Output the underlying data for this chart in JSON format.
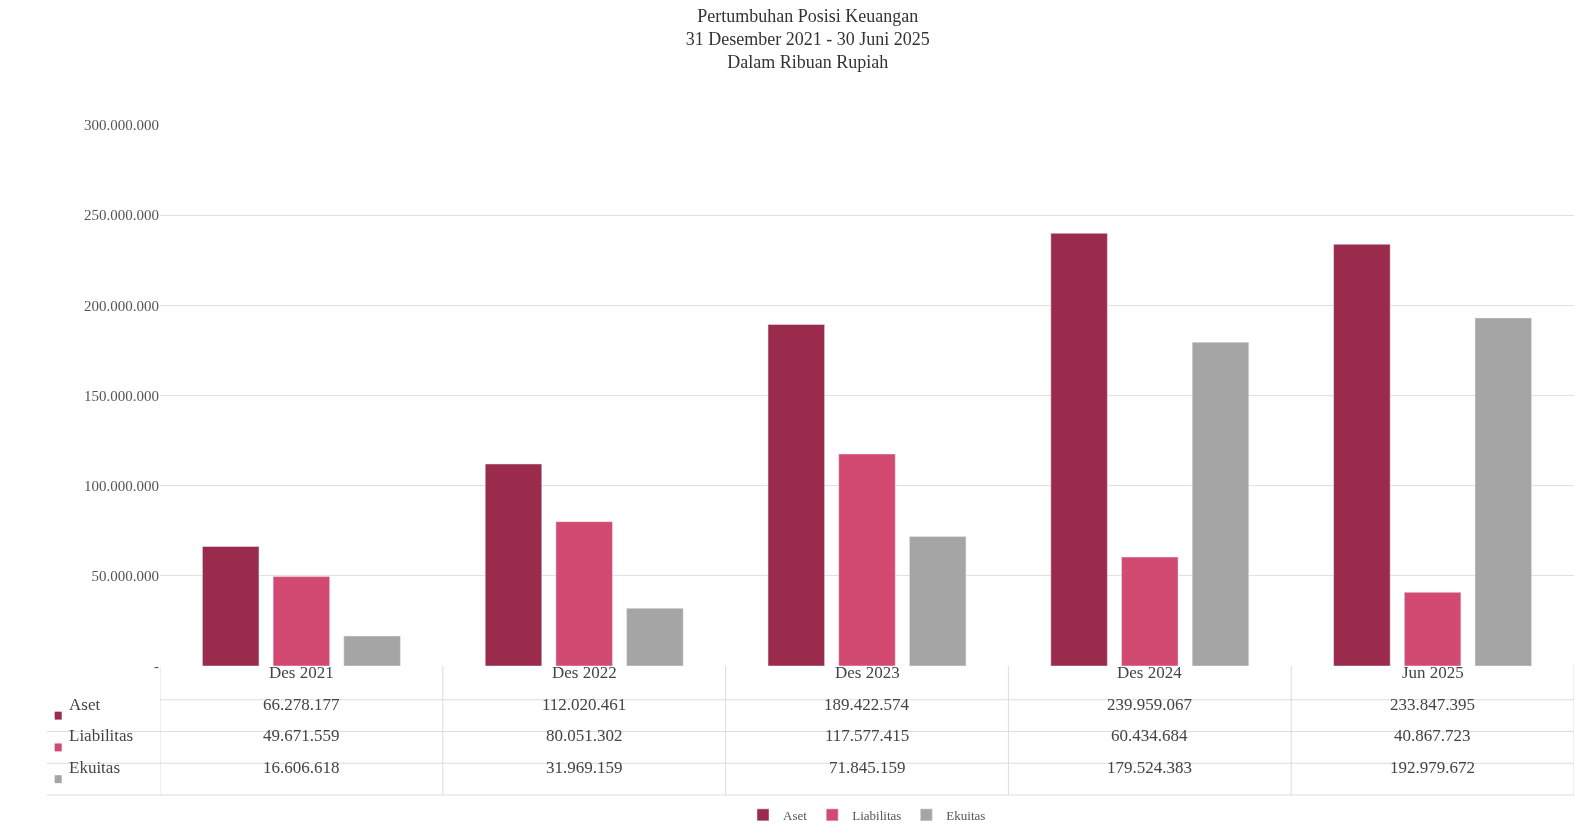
{
  "chart_data": {
    "type": "bar",
    "title": "Pertumbuhan Posisi Keuangan",
    "subtitle": "31 Desember 2021 - 30 Juni 2025\nDalam Ribuan Rupiah",
    "categories": [
      "Des 2021",
      "Des 2022",
      "Des 2023",
      "Des 2024",
      "Jun 2025"
    ],
    "series": [
      {
        "name": "Aset",
        "color": "#9b2b4c",
        "values": [
          66278177,
          112020461,
          189422574,
          239959067,
          233847395
        ],
        "value_labels": [
          "66.278.177",
          "112.020.461",
          "189.422.574",
          "239.959.067",
          "233.847.395"
        ]
      },
      {
        "name": "Liabilitas",
        "color": "#d24a72",
        "values": [
          49671559,
          80051302,
          117577415,
          60434684,
          40867723
        ],
        "value_labels": [
          "49.671.559",
          "80.051.302",
          "117.577.415",
          "60.434.684",
          "40.867.723"
        ]
      },
      {
        "name": "Ekuitas",
        "color": "#a5a5a5",
        "values": [
          16606618,
          31969159,
          71845159,
          179524383,
          192979672
        ],
        "value_labels": [
          "16.606.618",
          "31.969.159",
          "71.845.159",
          "179.524.383",
          "192.979.672"
        ]
      }
    ],
    "ylim": [
      0,
      300000000
    ],
    "yticks": [
      {
        "value": 0,
        "label": "-"
      },
      {
        "value": 50000000,
        "label": "50.000.000"
      },
      {
        "value": 100000000,
        "label": "100.000.000"
      },
      {
        "value": 150000000,
        "label": "150.000.000"
      },
      {
        "value": 200000000,
        "label": "200.000.000"
      },
      {
        "value": 250000000,
        "label": "250.000.000"
      },
      {
        "value": 300000000,
        "label": "300.000.000"
      }
    ],
    "grid": "y",
    "legend": "bottom"
  }
}
